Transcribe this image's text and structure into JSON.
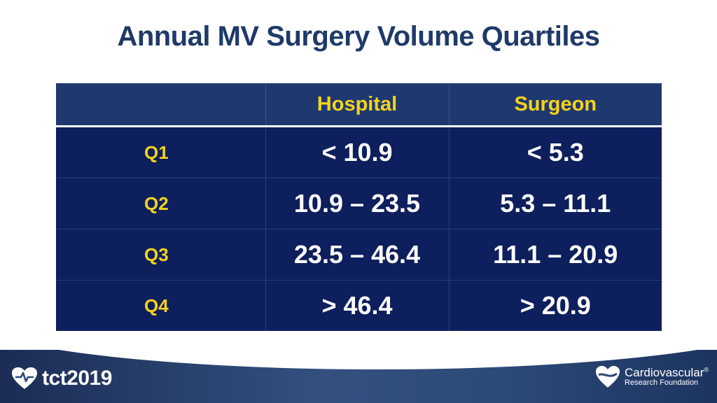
{
  "slide": {
    "title": "Annual MV Surgery Volume Quartiles"
  },
  "table": {
    "headers": [
      "",
      "Hospital",
      "Surgeon"
    ],
    "rows": [
      {
        "label": "Q1",
        "hospital": "< 10.9",
        "surgeon": "< 5.3"
      },
      {
        "label": "Q2",
        "hospital": "10.9 – 23.5",
        "surgeon": "5.3 – 11.1"
      },
      {
        "label": "Q3",
        "hospital": "23.5 – 46.4",
        "surgeon": "11.1 – 20.9"
      },
      {
        "label": "Q4",
        "hospital": "> 46.4",
        "surgeon": "> 20.9"
      }
    ]
  },
  "footer": {
    "left_logo": "tct2019",
    "right_logo_line1": "Cardiovascular",
    "right_logo_mark": "®",
    "right_logo_line2": "Research Foundation"
  },
  "colors": {
    "title": "#1f3a68",
    "header_bg": "#1f3870",
    "body_bg": "#0d1f5c",
    "accent": "#f5d31a"
  }
}
